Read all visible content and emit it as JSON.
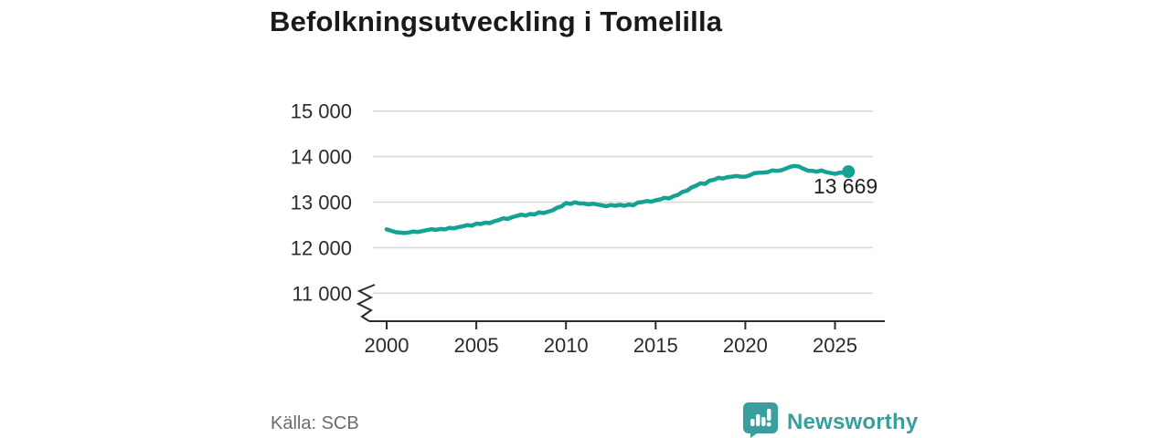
{
  "title": "Befolkningsutveckling i Tomelilla",
  "source": "Källa: SCB",
  "branding": {
    "name": "Newsworthy",
    "logo_icon": "bar-chart-speech-bubble",
    "color": "#3a9e9e"
  },
  "colors": {
    "line": "#14a294",
    "grid": "#d9d9d9",
    "axis": "#2b2b2b",
    "tick_text": "#2b2b2b",
    "label_text": "#1f1f1f",
    "muted_text": "#6b6b74"
  },
  "chart_data": {
    "type": "line",
    "title": "Befolkningsutveckling i Tomelilla",
    "xlabel": "",
    "ylabel": "",
    "series_name": "Befolkning",
    "x_start": 2000.0,
    "x_step": 0.25,
    "x_end": 2025.75,
    "values": [
      12400,
      12370,
      12340,
      12330,
      12320,
      12335,
      12355,
      12345,
      12365,
      12385,
      12405,
      12390,
      12410,
      12400,
      12435,
      12425,
      12450,
      12470,
      12495,
      12480,
      12530,
      12520,
      12550,
      12540,
      12580,
      12605,
      12645,
      12630,
      12670,
      12695,
      12725,
      12705,
      12740,
      12730,
      12775,
      12760,
      12790,
      12820,
      12875,
      12905,
      12980,
      12960,
      12995,
      12970,
      12970,
      12950,
      12965,
      12945,
      12930,
      12910,
      12935,
      12920,
      12940,
      12920,
      12945,
      12930,
      12990,
      13000,
      13025,
      13010,
      13040,
      13060,
      13095,
      13080,
      13130,
      13160,
      13225,
      13250,
      13320,
      13360,
      13415,
      13400,
      13470,
      13490,
      13535,
      13520,
      13550,
      13560,
      13575,
      13560,
      13560,
      13590,
      13635,
      13645,
      13650,
      13660,
      13695,
      13685,
      13700,
      13735,
      13775,
      13795,
      13780,
      13730,
      13690,
      13685,
      13670,
      13695,
      13660,
      13640,
      13620,
      13645,
      13650,
      13669
    ],
    "end_value": 13669,
    "end_label": "13 669",
    "y_tick_values": [
      15000,
      14000,
      13000,
      12000,
      11000
    ],
    "y_tick_labels": [
      "15 000",
      "14 000",
      "13 000",
      "12 000",
      "11 000"
    ],
    "x_tick_values": [
      2000,
      2005,
      2010,
      2015,
      2020,
      2025
    ],
    "x_tick_labels": [
      "2000",
      "2005",
      "2010",
      "2015",
      "2020",
      "2025"
    ],
    "ylim": [
      11000,
      15250
    ],
    "xlim": [
      1999,
      2027.8
    ],
    "grid": true,
    "axis_break_low": true,
    "legend": "none"
  }
}
